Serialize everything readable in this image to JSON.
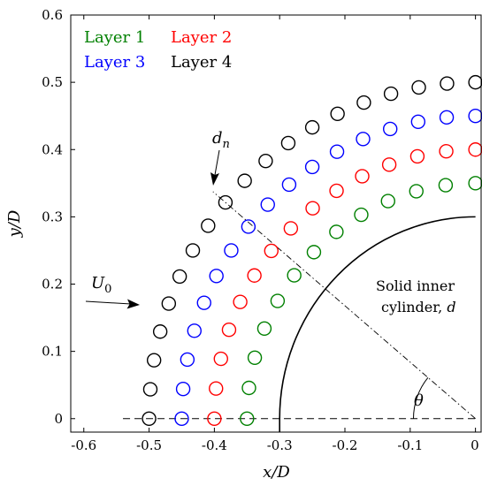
{
  "chart_data": {
    "type": "scatter",
    "title": "",
    "xlabel": "x/D",
    "ylabel": "y/D",
    "xlim": [
      -0.62,
      0.01
    ],
    "ylim": [
      -0.02,
      0.6
    ],
    "xticks": [
      -0.6,
      -0.5,
      -0.4,
      -0.3,
      -0.2,
      -0.1,
      0
    ],
    "xtick_labels": [
      "-0.6",
      "-0.5",
      "-0.4",
      "-0.3",
      "-0.2",
      "-0.1",
      "0"
    ],
    "yticks": [
      0,
      0.1,
      0.2,
      0.3,
      0.4,
      0.5,
      0.6
    ],
    "ytick_labels": [
      "0",
      "0.1",
      "0.2",
      "0.3",
      "0.4",
      "0.5",
      "0.6"
    ],
    "grid": false,
    "legend_position": "top-left",
    "series": [
      {
        "name": "Layer 1",
        "color": "#008000",
        "radius": 0.35,
        "count": 13
      },
      {
        "name": "Layer 2",
        "color": "#ff0000",
        "radius": 0.4,
        "count": 15
      },
      {
        "name": "Layer 3",
        "color": "#0000ff",
        "radius": 0.45,
        "count": 17
      },
      {
        "name": "Layer 4",
        "color": "#000000",
        "radius": 0.5,
        "count": 19
      }
    ],
    "inner_cylinder": {
      "radius": 0.3,
      "label_line1": "Solid inner",
      "label_line2": "cylinder,",
      "label_symbol": "d"
    },
    "annotations": {
      "flow_label": "U",
      "flow_sub": "0",
      "spacing_label": "d",
      "spacing_sub": "n",
      "angle_label": "θ"
    }
  }
}
